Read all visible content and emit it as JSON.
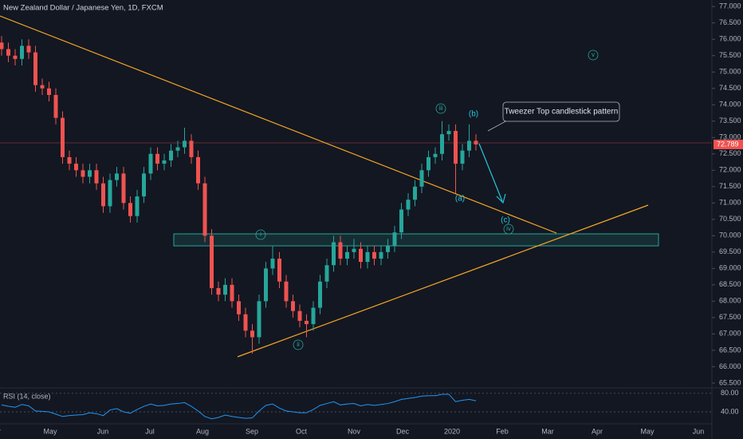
{
  "chart_data": {
    "type": "candlestick",
    "title": "New Zealand Dollar / Japanese Yen, 1D, FXCM",
    "open": [
      75.9,
      75.7,
      75.5,
      75.4,
      75.8,
      75.6,
      74.6,
      74.5,
      74.3,
      73.6,
      72.4,
      72.2,
      72.0,
      71.8,
      72.0,
      71.6,
      70.9,
      71.7,
      71.9,
      71.0,
      70.6,
      71.2,
      71.9,
      72.5,
      72.2,
      72.3,
      72.6,
      72.7,
      72.9,
      72.4,
      71.6,
      70.0,
      68.4,
      68.2,
      68.5,
      68.0,
      67.6,
      67.1,
      66.9,
      68.0,
      69.0,
      69.3,
      68.6,
      68.0,
      67.7,
      67.4,
      67.3,
      67.8,
      68.6,
      69.1,
      69.8,
      69.3,
      69.5,
      69.6,
      69.2,
      69.5,
      69.3,
      69.5,
      69.7,
      70.1,
      70.8,
      71.1,
      71.5,
      72.0,
      72.4,
      72.5,
      73.1,
      73.2,
      72.2,
      72.6,
      72.9
    ],
    "high": [
      76.1,
      75.9,
      75.7,
      76.0,
      76.0,
      75.8,
      74.8,
      74.7,
      74.5,
      73.8,
      72.6,
      72.4,
      72.2,
      72.2,
      72.2,
      71.8,
      71.9,
      72.1,
      72.1,
      71.2,
      71.4,
      72.1,
      72.7,
      72.7,
      72.5,
      72.8,
      72.9,
      73.3,
      73.1,
      72.6,
      71.8,
      70.2,
      68.6,
      68.7,
      68.7,
      68.2,
      67.8,
      67.3,
      68.2,
      69.2,
      69.7,
      69.5,
      68.8,
      68.2,
      67.9,
      67.6,
      68.0,
      68.8,
      69.3,
      70.0,
      70.0,
      69.7,
      69.9,
      69.8,
      69.7,
      69.7,
      69.7,
      69.9,
      70.3,
      71.0,
      71.3,
      71.7,
      72.2,
      72.6,
      72.7,
      73.5,
      73.4,
      73.4,
      72.8,
      73.4,
      73.1
    ],
    "low": [
      75.5,
      75.3,
      75.2,
      75.2,
      75.4,
      74.4,
      74.3,
      74.1,
      73.4,
      72.2,
      72.0,
      71.8,
      71.6,
      71.6,
      71.4,
      70.7,
      70.7,
      71.5,
      70.8,
      70.4,
      70.4,
      71.0,
      71.7,
      72.0,
      72.0,
      72.1,
      72.4,
      72.5,
      72.2,
      71.4,
      69.8,
      68.2,
      68.0,
      68.0,
      67.8,
      67.4,
      66.9,
      66.4,
      66.7,
      67.8,
      68.8,
      68.4,
      67.8,
      67.5,
      67.2,
      66.9,
      67.1,
      67.6,
      68.4,
      68.9,
      69.1,
      69.1,
      69.3,
      69.0,
      69.0,
      69.1,
      69.1,
      69.3,
      69.5,
      69.9,
      70.6,
      70.9,
      71.3,
      71.8,
      72.2,
      72.3,
      72.9,
      71.3,
      72.0,
      72.4,
      72.6
    ],
    "close": [
      75.7,
      75.5,
      75.4,
      75.8,
      75.6,
      74.6,
      74.5,
      74.3,
      73.6,
      72.4,
      72.2,
      72.0,
      71.8,
      72.0,
      71.6,
      70.9,
      71.7,
      71.9,
      71.0,
      70.6,
      71.2,
      71.9,
      72.5,
      72.2,
      72.3,
      72.6,
      72.7,
      72.9,
      72.4,
      71.6,
      70.0,
      68.4,
      68.2,
      68.5,
      68.0,
      67.6,
      67.1,
      66.9,
      68.0,
      69.0,
      69.3,
      68.6,
      68.0,
      67.7,
      67.4,
      67.3,
      67.8,
      68.6,
      69.1,
      69.8,
      69.3,
      69.5,
      69.6,
      69.2,
      69.5,
      69.3,
      69.5,
      69.7,
      70.1,
      70.8,
      71.1,
      71.5,
      72.0,
      72.4,
      72.5,
      73.1,
      73.2,
      72.2,
      72.6,
      72.9,
      72.789
    ],
    "up_color": "#26a69a",
    "down_color": "#ef5350",
    "last_price": {
      "value": 72.789,
      "label": "72.789"
    },
    "ylim": [
      65.4,
      77.2
    ],
    "yticks": [
      {
        "value": 77,
        "label": "77.000"
      },
      {
        "value": 76.5,
        "label": "76.500"
      },
      {
        "value": 76,
        "label": "76.000"
      },
      {
        "value": 75.5,
        "label": "75.500"
      },
      {
        "value": 75,
        "label": "75.000"
      },
      {
        "value": 74.5,
        "label": "74.500"
      },
      {
        "value": 74,
        "label": "74.000"
      },
      {
        "value": 73.5,
        "label": "73.500"
      },
      {
        "value": 73,
        "label": "73.000"
      },
      {
        "value": 72.5,
        "label": "72.500"
      },
      {
        "value": 72,
        "label": "72.000"
      },
      {
        "value": 71.5,
        "label": "71.500"
      },
      {
        "value": 71,
        "label": "71.000"
      },
      {
        "value": 70.5,
        "label": "70.500"
      },
      {
        "value": 70,
        "label": "70.000"
      },
      {
        "value": 69.5,
        "label": "69.500"
      },
      {
        "value": 69,
        "label": "69.000"
      },
      {
        "value": 68.5,
        "label": "68.500"
      },
      {
        "value": 68,
        "label": "68.000"
      },
      {
        "value": 67.5,
        "label": "67.500"
      },
      {
        "value": 67,
        "label": "67.000"
      },
      {
        "value": 66.5,
        "label": "66.500"
      },
      {
        "value": 66,
        "label": "66.000"
      },
      {
        "value": 65.5,
        "label": "65.500"
      }
    ],
    "categories": [
      "Apr",
      "May",
      "Jun",
      "Jul",
      "Aug",
      "Sep",
      "Oct",
      "Nov",
      "Dec",
      "2020",
      "Feb",
      "Mar",
      "Apr",
      "May",
      "Jun"
    ],
    "annotations": [
      "i",
      "ii",
      "iii",
      "iv",
      "v",
      "(a)",
      "(b)",
      "(c)",
      "Tweezer Top candlestick pattern"
    ],
    "rsi": {
      "title": "RSI (14, close)",
      "color": "#2196f3",
      "values": [
        55,
        52,
        50,
        56,
        53,
        42,
        41,
        40,
        35,
        30,
        32,
        33,
        34,
        38,
        36,
        32,
        44,
        47,
        40,
        37,
        45,
        52,
        57,
        53,
        54,
        57,
        58,
        60,
        52,
        42,
        30,
        25,
        28,
        33,
        30,
        28,
        26,
        27,
        42,
        54,
        57,
        48,
        42,
        40,
        38,
        38,
        45,
        54,
        58,
        62,
        55,
        57,
        58,
        53,
        56,
        54,
        56,
        58,
        62,
        67,
        69,
        71,
        74,
        75,
        75,
        78,
        78,
        62,
        65,
        67,
        64
      ],
      "ylim": [
        -10,
        90
      ],
      "yticks": [
        {
          "value": 80,
          "label": "80.00"
        },
        {
          "value": 40,
          "label": "40.00"
        }
      ]
    }
  }
}
